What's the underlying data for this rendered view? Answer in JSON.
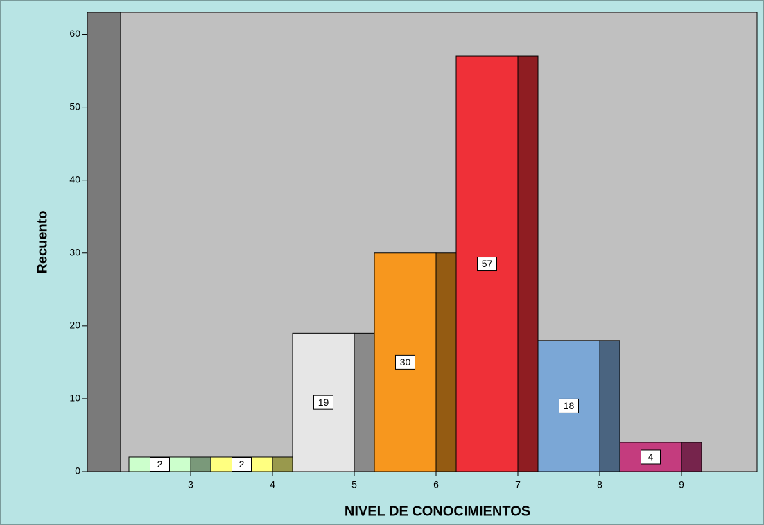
{
  "chart_data": {
    "type": "bar3d",
    "xlabel": "NIVEL DE CONOCIMIENTOS",
    "ylabel": "Recuento",
    "categories": [
      "3",
      "4",
      "5",
      "6",
      "7",
      "8",
      "9"
    ],
    "values": [
      2,
      2,
      19,
      30,
      57,
      18,
      4
    ],
    "colors": [
      "#ccffcc",
      "#ffff80",
      "#e6e6e6",
      "#f7971e",
      "#ef3038",
      "#7ba7d6",
      "#c43c7e"
    ],
    "ylim": [
      0,
      63
    ],
    "yticks": [
      0,
      10,
      20,
      30,
      40,
      50,
      60
    ]
  }
}
